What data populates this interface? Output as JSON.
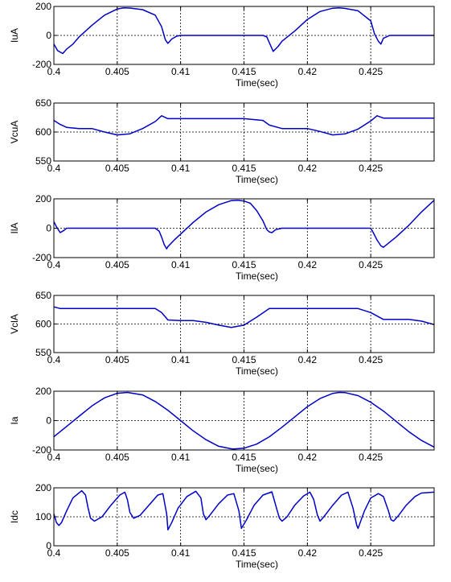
{
  "figure": {
    "background": "#ffffff",
    "line_color": "#0000c8",
    "grid_color": "#000000"
  },
  "chart_data": [
    {
      "type": "line",
      "ylabel": "IuA",
      "xlabel": "Time(sec)",
      "xlim": [
        0.4,
        0.43
      ],
      "ylim": [
        -200,
        200
      ],
      "xticks": [
        0.4,
        0.405,
        0.41,
        0.415,
        0.42,
        0.425
      ],
      "xtick_labels": [
        "0.4",
        "0.405",
        "0.41",
        "0.415",
        "0.42",
        "0.425"
      ],
      "yticks": [
        -200,
        0,
        200
      ],
      "ytick_labels": [
        "-200",
        "0",
        "200"
      ],
      "grid": true,
      "series": [
        {
          "x": [
            0.4,
            0.4003,
            0.4007,
            0.401,
            0.4015,
            0.402,
            0.403,
            0.404,
            0.405,
            0.4055,
            0.406,
            0.407,
            0.408,
            0.4085,
            0.4088,
            0.409,
            0.4093,
            0.4097,
            0.41,
            0.415,
            0.4165,
            0.4168,
            0.417,
            0.4173,
            0.4177,
            0.418,
            0.419,
            0.42,
            0.421,
            0.422,
            0.4225,
            0.423,
            0.424,
            0.425,
            0.4253,
            0.4256,
            0.4258,
            0.426,
            0.4265,
            0.43
          ],
          "y": [
            -60,
            -105,
            -125,
            -95,
            -60,
            -10,
            70,
            140,
            182,
            190,
            189,
            178,
            140,
            60,
            -30,
            -55,
            -25,
            -5,
            0,
            0,
            0,
            -10,
            -50,
            -110,
            -75,
            -40,
            30,
            110,
            165,
            188,
            190,
            186,
            170,
            100,
            10,
            -40,
            -60,
            -20,
            0,
            0
          ]
        }
      ]
    },
    {
      "type": "line",
      "ylabel": "VcuA",
      "xlabel": "",
      "xlim": [
        0.4,
        0.43
      ],
      "ylim": [
        550,
        650
      ],
      "xticks": [
        0.4,
        0.405,
        0.41,
        0.415,
        0.42,
        0.425
      ],
      "xtick_labels": [
        "0.4",
        "0.405",
        "0.41",
        "0.415",
        "0.42",
        "0.425"
      ],
      "yticks": [
        550,
        600,
        650
      ],
      "ytick_labels": [
        "550",
        "600",
        "650"
      ],
      "grid": true,
      "series": [
        {
          "x": [
            0.4,
            0.4005,
            0.401,
            0.402,
            0.403,
            0.404,
            0.405,
            0.406,
            0.407,
            0.408,
            0.4085,
            0.409,
            0.41,
            0.415,
            0.4165,
            0.417,
            0.418,
            0.419,
            0.42,
            0.421,
            0.422,
            0.423,
            0.424,
            0.425,
            0.4255,
            0.426,
            0.43
          ],
          "y": [
            620,
            613,
            608,
            606,
            606,
            600,
            595,
            597,
            606,
            618,
            628,
            623,
            623,
            623,
            620,
            612,
            606,
            606,
            606,
            601,
            595,
            597,
            605,
            619,
            628,
            624,
            624
          ]
        }
      ]
    },
    {
      "type": "line",
      "ylabel": "IlA",
      "xlabel": "",
      "xlim": [
        0.4,
        0.43
      ],
      "ylim": [
        -200,
        200
      ],
      "xticks": [
        0.4,
        0.405,
        0.41,
        0.415,
        0.42,
        0.425
      ],
      "xtick_labels": [
        "0.4",
        "0.405",
        "0.41",
        "0.415",
        "0.42",
        "0.425"
      ],
      "yticks": [
        -200,
        0,
        200
      ],
      "ytick_labels": [
        "-200",
        "0",
        "200"
      ],
      "grid": true,
      "series": [
        {
          "x": [
            0.4,
            0.4002,
            0.4005,
            0.4008,
            0.401,
            0.408,
            0.4083,
            0.4085,
            0.4087,
            0.4089,
            0.409,
            0.4095,
            0.41,
            0.411,
            0.412,
            0.413,
            0.414,
            0.4145,
            0.415,
            0.4155,
            0.416,
            0.4165,
            0.4168,
            0.417,
            0.4172,
            0.4175,
            0.418,
            0.425,
            0.4252,
            0.4255,
            0.4258,
            0.426,
            0.4265,
            0.427,
            0.428,
            0.429,
            0.43
          ],
          "y": [
            45,
            10,
            -30,
            -15,
            0,
            0,
            -20,
            -60,
            -110,
            -140,
            -125,
            -80,
            -40,
            40,
            110,
            160,
            188,
            190,
            185,
            170,
            120,
            50,
            -10,
            -25,
            -30,
            -10,
            0,
            0,
            -30,
            -80,
            -120,
            -130,
            -95,
            -60,
            20,
            110,
            190
          ]
        }
      ]
    },
    {
      "type": "line",
      "ylabel": "VclA",
      "xlabel": "",
      "xlim": [
        0.4,
        0.43
      ],
      "ylim": [
        550,
        650
      ],
      "xticks": [
        0.4,
        0.405,
        0.41,
        0.415,
        0.42,
        0.425
      ],
      "xtick_labels": [
        "0.4",
        "0.405",
        "0.41",
        "0.415",
        "0.42",
        "0.425"
      ],
      "yticks": [
        550,
        600,
        650
      ],
      "ytick_labels": [
        "550",
        "600",
        "650"
      ],
      "grid": true,
      "series": [
        {
          "x": [
            0.4,
            0.4005,
            0.401,
            0.408,
            0.4085,
            0.409,
            0.41,
            0.411,
            0.412,
            0.413,
            0.414,
            0.415,
            0.416,
            0.417,
            0.418,
            0.424,
            0.425,
            0.426,
            0.428,
            0.429,
            0.43
          ],
          "y": [
            630,
            627,
            627,
            627,
            620,
            607,
            606,
            606,
            603,
            598,
            594,
            598,
            612,
            627,
            627,
            627,
            620,
            608,
            608,
            605,
            599
          ]
        }
      ]
    },
    {
      "type": "line",
      "ylabel": "Ia",
      "xlabel": "",
      "xlim": [
        0.4,
        0.43
      ],
      "ylim": [
        -200,
        200
      ],
      "xticks": [
        0.4,
        0.405,
        0.41,
        0.415,
        0.42,
        0.425
      ],
      "xtick_labels": [
        "0.4",
        "0.405",
        "0.41",
        "0.415",
        "0.42",
        "0.425"
      ],
      "yticks": [
        -200,
        0,
        200
      ],
      "ytick_labels": [
        "-200",
        "0",
        "200"
      ],
      "grid": true,
      "series": [
        {
          "x": [
            0.4,
            0.401,
            0.402,
            0.403,
            0.404,
            0.405,
            0.4058,
            0.407,
            0.408,
            0.409,
            0.41,
            0.411,
            0.412,
            0.413,
            0.414,
            0.4142,
            0.415,
            0.416,
            0.417,
            0.418,
            0.419,
            0.42,
            0.421,
            0.422,
            0.4225,
            0.423,
            0.424,
            0.425,
            0.426,
            0.427,
            0.428,
            0.429,
            0.43
          ],
          "y": [
            -110,
            -40,
            30,
            100,
            155,
            186,
            192,
            175,
            130,
            70,
            0,
            -70,
            -130,
            -175,
            -192,
            -193,
            -188,
            -160,
            -110,
            -45,
            25,
            95,
            150,
            185,
            192,
            190,
            170,
            125,
            65,
            -5,
            -75,
            -135,
            -180
          ]
        }
      ]
    },
    {
      "type": "line",
      "ylabel": "Idc",
      "xlabel": "",
      "xlim": [
        0.4,
        0.43
      ],
      "ylim": [
        0,
        200
      ],
      "xticks": [
        0.4,
        0.405,
        0.41,
        0.415,
        0.42,
        0.425
      ],
      "xtick_labels": [
        "0.4",
        "0.405",
        "0.41",
        "0.415",
        "0.42",
        "0.425"
      ],
      "yticks": [
        0,
        100,
        200
      ],
      "ytick_labels": [
        "0",
        "100",
        "200"
      ],
      "grid": true,
      "series": [
        {
          "x": [
            0.4,
            0.4002,
            0.4004,
            0.4006,
            0.401,
            0.4015,
            0.4022,
            0.4025,
            0.4027,
            0.4029,
            0.4032,
            0.4038,
            0.4045,
            0.4052,
            0.4056,
            0.4058,
            0.406,
            0.4063,
            0.4068,
            0.4075,
            0.4082,
            0.4086,
            0.4089,
            0.409,
            0.4093,
            0.4098,
            0.4105,
            0.4112,
            0.4116,
            0.4118,
            0.412,
            0.4123,
            0.413,
            0.4137,
            0.4142,
            0.4146,
            0.4148,
            0.4152,
            0.4158,
            0.4165,
            0.4172,
            0.4175,
            0.4178,
            0.418,
            0.4184,
            0.419,
            0.4197,
            0.4202,
            0.4205,
            0.4208,
            0.421,
            0.4213,
            0.422,
            0.4227,
            0.4232,
            0.4236,
            0.4239,
            0.424,
            0.4245,
            0.425,
            0.4256,
            0.426,
            0.4264,
            0.4266,
            0.4268,
            0.4272,
            0.4278,
            0.4285,
            0.429,
            0.43
          ],
          "y": [
            110,
            80,
            70,
            80,
            120,
            165,
            190,
            175,
            130,
            95,
            85,
            100,
            140,
            175,
            185,
            160,
            115,
            95,
            105,
            140,
            175,
            180,
            110,
            55,
            80,
            130,
            170,
            188,
            165,
            110,
            90,
            105,
            145,
            175,
            180,
            120,
            60,
            90,
            140,
            175,
            186,
            140,
            95,
            85,
            100,
            140,
            172,
            185,
            160,
            105,
            85,
            100,
            140,
            175,
            185,
            130,
            70,
            60,
            120,
            165,
            180,
            170,
            120,
            90,
            85,
            105,
            140,
            170,
            182,
            185
          ]
        }
      ]
    }
  ]
}
